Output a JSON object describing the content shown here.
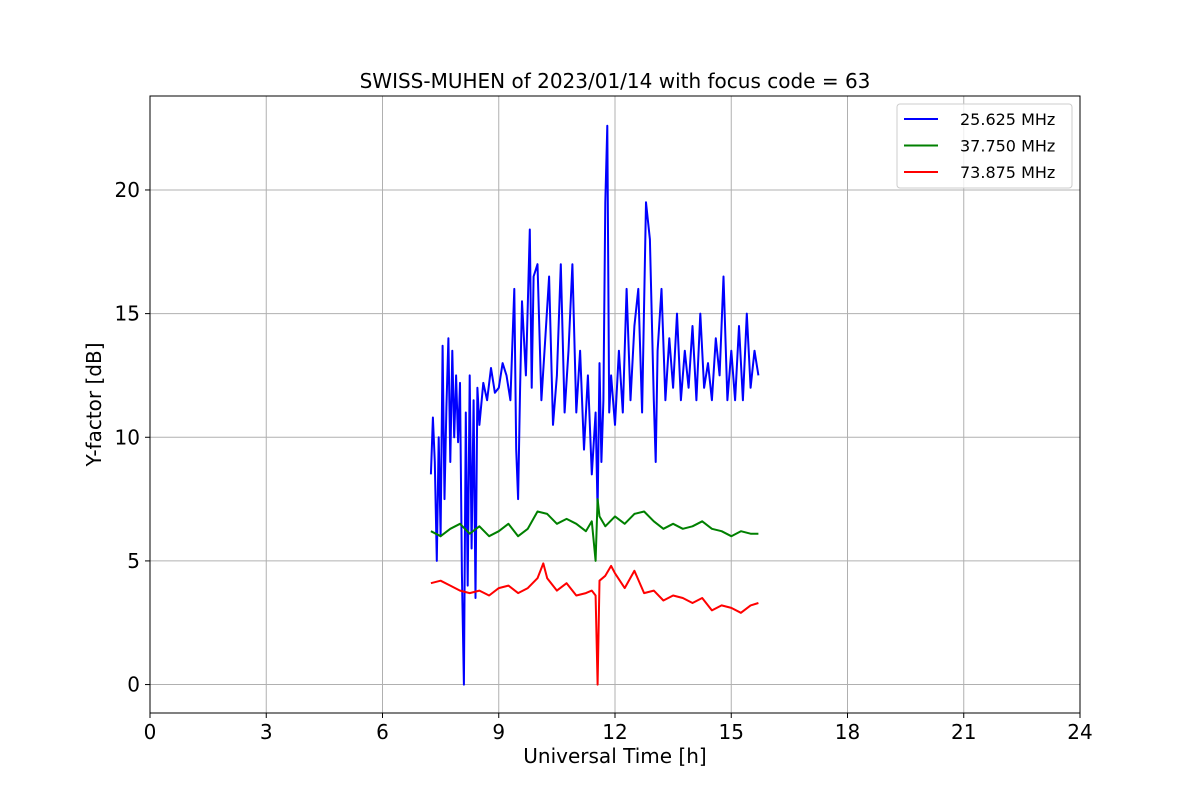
{
  "chart_data": {
    "type": "line",
    "title": "SWISS-MUHEN of 2023/01/14 with focus code = 63",
    "xlabel": "Universal Time [h]",
    "ylabel": "Y-factor [dB]",
    "xlim": [
      0,
      24
    ],
    "ylim": [
      -1.15,
      23.8
    ],
    "xticks": [
      0,
      3,
      6,
      9,
      12,
      15,
      18,
      21,
      24
    ],
    "yticks": [
      0,
      5,
      10,
      15,
      20
    ],
    "grid": true,
    "legend_position": "top-right",
    "series": [
      {
        "name": "25.625 MHz",
        "color": "#0000ff",
        "x": [
          7.25,
          7.3,
          7.35,
          7.4,
          7.45,
          7.5,
          7.55,
          7.6,
          7.65,
          7.7,
          7.75,
          7.8,
          7.85,
          7.9,
          7.95,
          8.0,
          8.05,
          8.1,
          8.15,
          8.2,
          8.25,
          8.3,
          8.35,
          8.4,
          8.45,
          8.5,
          8.6,
          8.7,
          8.8,
          8.9,
          9.0,
          9.1,
          9.2,
          9.3,
          9.4,
          9.45,
          9.5,
          9.55,
          9.6,
          9.7,
          9.8,
          9.85,
          9.9,
          10.0,
          10.1,
          10.2,
          10.3,
          10.4,
          10.5,
          10.6,
          10.7,
          10.8,
          10.9,
          11.0,
          11.1,
          11.2,
          11.3,
          11.4,
          11.5,
          11.55,
          11.6,
          11.65,
          11.7,
          11.75,
          11.8,
          11.85,
          11.9,
          12.0,
          12.1,
          12.2,
          12.3,
          12.4,
          12.5,
          12.6,
          12.7,
          12.8,
          12.9,
          13.0,
          13.05,
          13.1,
          13.2,
          13.3,
          13.4,
          13.5,
          13.6,
          13.7,
          13.8,
          13.9,
          14.0,
          14.1,
          14.2,
          14.3,
          14.4,
          14.5,
          14.6,
          14.7,
          14.8,
          14.9,
          15.0,
          15.1,
          15.2,
          15.3,
          15.4,
          15.5,
          15.6,
          15.7
        ],
        "y": [
          8.5,
          10.8,
          9.0,
          5.0,
          10.0,
          6.0,
          13.7,
          7.5,
          11.2,
          14.0,
          9.0,
          13.5,
          10.0,
          12.5,
          9.8,
          12.2,
          4.5,
          0.0,
          11.0,
          4.0,
          12.5,
          5.5,
          11.5,
          3.5,
          12.0,
          10.5,
          12.2,
          11.5,
          12.8,
          11.8,
          12.0,
          13.0,
          12.5,
          11.5,
          16.0,
          9.5,
          7.5,
          12.0,
          15.5,
          12.5,
          18.4,
          12.0,
          16.5,
          17.0,
          11.5,
          14.0,
          16.5,
          10.5,
          12.5,
          17.0,
          11.0,
          13.5,
          17.0,
          11.0,
          13.5,
          9.5,
          12.5,
          8.5,
          11.0,
          7.0,
          13.0,
          9.0,
          11.5,
          19.5,
          22.6,
          11.0,
          12.5,
          10.5,
          13.5,
          11.0,
          16.0,
          11.5,
          14.5,
          16.0,
          11.0,
          19.5,
          18.0,
          11.5,
          9.0,
          13.5,
          16.0,
          11.5,
          14.0,
          12.0,
          15.0,
          11.5,
          13.5,
          12.0,
          14.5,
          11.5,
          15.0,
          12.0,
          13.0,
          11.5,
          14.0,
          12.5,
          16.5,
          11.5,
          13.5,
          11.5,
          14.5,
          11.5,
          15.0,
          12.0,
          13.5,
          12.5
        ]
      },
      {
        "name": "37.750 MHz",
        "color": "#008000",
        "x": [
          7.25,
          7.5,
          7.75,
          8.0,
          8.25,
          8.5,
          8.75,
          9.0,
          9.25,
          9.5,
          9.75,
          10.0,
          10.25,
          10.5,
          10.75,
          11.0,
          11.25,
          11.4,
          11.5,
          11.55,
          11.6,
          11.75,
          12.0,
          12.25,
          12.5,
          12.75,
          13.0,
          13.25,
          13.5,
          13.75,
          14.0,
          14.25,
          14.5,
          14.75,
          15.0,
          15.25,
          15.5,
          15.7
        ],
        "y": [
          6.2,
          6.0,
          6.3,
          6.5,
          6.1,
          6.4,
          6.0,
          6.2,
          6.5,
          6.0,
          6.3,
          7.0,
          6.9,
          6.5,
          6.7,
          6.5,
          6.2,
          6.6,
          5.0,
          7.5,
          6.8,
          6.4,
          6.8,
          6.5,
          6.9,
          7.0,
          6.6,
          6.3,
          6.5,
          6.3,
          6.4,
          6.6,
          6.3,
          6.2,
          6.0,
          6.2,
          6.1,
          6.1
        ]
      },
      {
        "name": "73.875 MHz",
        "color": "#ff0000",
        "x": [
          7.25,
          7.5,
          7.75,
          8.0,
          8.25,
          8.5,
          8.75,
          9.0,
          9.25,
          9.5,
          9.75,
          10.0,
          10.15,
          10.25,
          10.5,
          10.75,
          11.0,
          11.25,
          11.4,
          11.5,
          11.55,
          11.6,
          11.75,
          11.9,
          12.0,
          12.25,
          12.5,
          12.75,
          13.0,
          13.25,
          13.5,
          13.75,
          14.0,
          14.25,
          14.5,
          14.75,
          15.0,
          15.25,
          15.5,
          15.7
        ],
        "y": [
          4.1,
          4.2,
          4.0,
          3.8,
          3.7,
          3.8,
          3.6,
          3.9,
          4.0,
          3.7,
          3.9,
          4.3,
          4.9,
          4.3,
          3.8,
          4.1,
          3.6,
          3.7,
          3.8,
          3.6,
          0.0,
          4.2,
          4.4,
          4.8,
          4.5,
          3.9,
          4.6,
          3.7,
          3.8,
          3.4,
          3.6,
          3.5,
          3.3,
          3.5,
          3.0,
          3.2,
          3.1,
          2.9,
          3.2,
          3.3
        ]
      }
    ]
  }
}
